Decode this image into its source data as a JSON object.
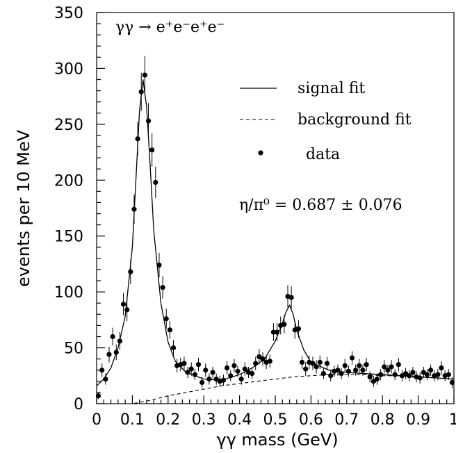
{
  "chart_data": {
    "type": "scatter",
    "title": "",
    "xlabel": "γγ mass (GeV)",
    "ylabel": "events per 10 MeV",
    "xlim": [
      0,
      1
    ],
    "ylim": [
      0,
      350
    ],
    "x_ticks": [
      "0",
      "0.1",
      "0.2",
      "0.3",
      "0.4",
      "0.5",
      "0.6",
      "0.7",
      "0.8",
      "0.9",
      "1"
    ],
    "y_ticks": [
      "0",
      "50",
      "100",
      "150",
      "200",
      "250",
      "300",
      "350"
    ],
    "grid": false,
    "legend_position": "top-right",
    "annotations": {
      "process": "γγ → e⁺e⁻e⁺e⁻",
      "ratio": "η/π⁰ = 0.687 ± 0.076"
    },
    "series": [
      {
        "name": "data",
        "kind": "points-with-error-bars",
        "x": [
          0.005,
          0.015,
          0.025,
          0.035,
          0.045,
          0.055,
          0.065,
          0.075,
          0.085,
          0.095,
          0.105,
          0.115,
          0.125,
          0.135,
          0.145,
          0.155,
          0.165,
          0.175,
          0.185,
          0.195,
          0.205,
          0.215,
          0.225,
          0.235,
          0.245,
          0.255,
          0.265,
          0.275,
          0.285,
          0.295,
          0.305,
          0.315,
          0.325,
          0.335,
          0.345,
          0.355,
          0.365,
          0.375,
          0.385,
          0.395,
          0.405,
          0.415,
          0.425,
          0.435,
          0.445,
          0.455,
          0.465,
          0.475,
          0.485,
          0.495,
          0.505,
          0.515,
          0.525,
          0.535,
          0.545,
          0.555,
          0.565,
          0.575,
          0.585,
          0.595,
          0.605,
          0.615,
          0.625,
          0.635,
          0.645,
          0.655,
          0.665,
          0.675,
          0.685,
          0.695,
          0.705,
          0.715,
          0.725,
          0.735,
          0.745,
          0.755,
          0.765,
          0.775,
          0.785,
          0.795,
          0.805,
          0.815,
          0.825,
          0.835,
          0.845,
          0.855,
          0.865,
          0.875,
          0.885,
          0.895,
          0.905,
          0.915,
          0.925,
          0.935,
          0.945,
          0.955,
          0.965,
          0.975,
          0.985,
          0.995
        ],
        "y": [
          7,
          30,
          22,
          44,
          60,
          46,
          56,
          89,
          84,
          118,
          174,
          237,
          279,
          294,
          253,
          227,
          198,
          124,
          104,
          76,
          66,
          50,
          34,
          35,
          36,
          28,
          31,
          26,
          35,
          19,
          30,
          22,
          28,
          22,
          20,
          21,
          32,
          25,
          34,
          29,
          22,
          31,
          28,
          27,
          36,
          42,
          40,
          37,
          38,
          64,
          64,
          70,
          71,
          96,
          95,
          66,
          67,
          37,
          31,
          37,
          36,
          33,
          37,
          27,
          36,
          25,
          29,
          30,
          27,
          34,
          29,
          41,
          30,
          34,
          30,
          35,
          24,
          20,
          22,
          26,
          33,
          30,
          33,
          26,
          35,
          25,
          27,
          25,
          28,
          24,
          23,
          28,
          26,
          30,
          25,
          26,
          32,
          25,
          26,
          19
        ],
        "yerr": [
          3,
          6,
          5,
          7,
          8,
          7,
          8,
          10,
          10,
          11,
          13,
          15,
          17,
          17,
          16,
          15,
          14,
          11,
          10,
          9,
          8,
          7,
          6,
          6,
          6,
          5,
          6,
          5,
          6,
          5,
          6,
          5,
          5,
          5,
          5,
          5,
          6,
          5,
          6,
          5,
          5,
          6,
          5,
          5,
          6,
          7,
          6,
          6,
          6,
          8,
          8,
          8,
          8,
          10,
          10,
          8,
          8,
          6,
          6,
          6,
          6,
          6,
          6,
          5,
          6,
          5,
          5,
          5,
          5,
          6,
          5,
          6,
          5,
          6,
          5,
          6,
          5,
          5,
          5,
          5,
          6,
          5,
          6,
          5,
          6,
          5,
          5,
          5,
          5,
          5,
          5,
          5,
          5,
          5,
          5,
          5,
          6,
          5,
          5,
          5
        ]
      },
      {
        "name": "signal fit",
        "kind": "solid-line",
        "x": [
          0,
          0.02,
          0.04,
          0.06,
          0.08,
          0.1,
          0.11,
          0.12,
          0.13,
          0.14,
          0.15,
          0.16,
          0.18,
          0.2,
          0.22,
          0.25,
          0.3,
          0.35,
          0.4,
          0.44,
          0.47,
          0.5,
          0.52,
          0.53,
          0.54,
          0.55,
          0.56,
          0.58,
          0.6,
          0.65,
          0.7,
          0.75,
          0.8,
          0.85,
          0.9,
          0.95,
          1.0
        ],
        "y": [
          16,
          22,
          32,
          50,
          78,
          140,
          200,
          262,
          290,
          265,
          212,
          155,
          90,
          55,
          38,
          28,
          22,
          21,
          26,
          33,
          40,
          56,
          72,
          82,
          88,
          80,
          66,
          48,
          37,
          30,
          28,
          27,
          26,
          25,
          24,
          23,
          22
        ]
      },
      {
        "name": "background fit",
        "kind": "dashed-line",
        "x": [
          0.0,
          0.05,
          0.1,
          0.15,
          0.2,
          0.25,
          0.3,
          0.35,
          0.4,
          0.45,
          0.5,
          0.55,
          0.6,
          0.65,
          0.7,
          0.75,
          0.8,
          0.85,
          0.9,
          0.95,
          1.0
        ],
        "y": [
          0,
          0,
          0,
          3,
          7,
          10,
          13,
          16,
          18,
          20,
          22,
          24,
          25,
          26,
          26,
          26,
          25,
          25,
          24,
          23,
          22
        ]
      }
    ]
  }
}
